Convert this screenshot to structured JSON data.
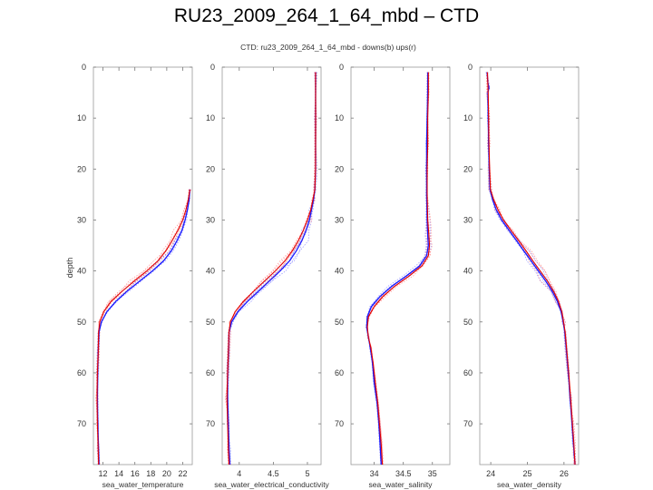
{
  "slide": {
    "title": "RU23_2009_264_1_64_mbd – CTD"
  },
  "chart_data": {
    "type": "line",
    "title": "CTD: ru23_2009_264_1_64_mbd - downs(b) ups(r)",
    "ylabel": "depth",
    "ylim": [
      0,
      78
    ],
    "y_inverted": true,
    "y_ticks": [
      0,
      10,
      20,
      30,
      40,
      50,
      60,
      70
    ],
    "series_legend": [
      {
        "name": "downs",
        "color": "#1a1aff"
      },
      {
        "name": "ups",
        "color": "#e00000"
      }
    ],
    "panels": [
      {
        "id": "temperature",
        "xlabel": "sea_water_temperature",
        "xlim": [
          10.8,
          23.2
        ],
        "x_ticks": [
          12,
          14,
          16,
          18,
          20,
          22
        ],
        "x_tick_labels": [
          "12",
          "14",
          "16",
          "18",
          "20",
          "22"
        ],
        "downs": [
          [
            22.9,
            24
          ],
          [
            22.8,
            26
          ],
          [
            22.6,
            28
          ],
          [
            22.3,
            30
          ],
          [
            21.9,
            32
          ],
          [
            21.3,
            34
          ],
          [
            20.6,
            36
          ],
          [
            19.6,
            38
          ],
          [
            18.2,
            40
          ],
          [
            16.6,
            42
          ],
          [
            15.0,
            44
          ],
          [
            13.6,
            46
          ],
          [
            12.5,
            48
          ],
          [
            11.8,
            50
          ],
          [
            11.5,
            52
          ],
          [
            11.4,
            56
          ],
          [
            11.35,
            60
          ],
          [
            11.3,
            65
          ],
          [
            11.35,
            70
          ],
          [
            11.45,
            75
          ],
          [
            11.5,
            78
          ]
        ],
        "ups": [
          [
            22.9,
            24
          ],
          [
            22.7,
            26
          ],
          [
            22.4,
            28
          ],
          [
            22.0,
            30
          ],
          [
            21.4,
            32
          ],
          [
            20.7,
            34
          ],
          [
            19.9,
            36
          ],
          [
            18.9,
            38
          ],
          [
            17.5,
            40
          ],
          [
            15.9,
            42
          ],
          [
            14.4,
            44
          ],
          [
            13.0,
            46
          ],
          [
            12.1,
            48
          ],
          [
            11.6,
            50
          ],
          [
            11.45,
            52
          ],
          [
            11.4,
            56
          ],
          [
            11.3,
            60
          ],
          [
            11.25,
            65
          ],
          [
            11.3,
            70
          ],
          [
            11.4,
            75
          ],
          [
            11.45,
            78
          ]
        ]
      },
      {
        "id": "conductivity",
        "xlabel": "sea_water_electrical_conductivity",
        "xlim": [
          3.75,
          5.2
        ],
        "x_ticks": [
          4,
          4.5,
          5
        ],
        "x_tick_labels": [
          "4",
          "4.5",
          "5"
        ],
        "downs": [
          [
            5.12,
            1
          ],
          [
            5.12,
            10
          ],
          [
            5.12,
            20
          ],
          [
            5.11,
            24
          ],
          [
            5.09,
            26
          ],
          [
            5.06,
            28
          ],
          [
            5.03,
            30
          ],
          [
            4.98,
            32
          ],
          [
            4.92,
            34
          ],
          [
            4.84,
            36
          ],
          [
            4.74,
            38
          ],
          [
            4.6,
            40
          ],
          [
            4.44,
            42
          ],
          [
            4.28,
            44
          ],
          [
            4.12,
            46
          ],
          [
            3.98,
            48
          ],
          [
            3.89,
            50
          ],
          [
            3.85,
            52
          ],
          [
            3.84,
            56
          ],
          [
            3.83,
            60
          ],
          [
            3.83,
            65
          ],
          [
            3.84,
            70
          ],
          [
            3.85,
            75
          ],
          [
            3.86,
            78
          ]
        ],
        "ups": [
          [
            5.12,
            1
          ],
          [
            5.12,
            10
          ],
          [
            5.12,
            20
          ],
          [
            5.11,
            24
          ],
          [
            5.08,
            26
          ],
          [
            5.05,
            28
          ],
          [
            5.0,
            30
          ],
          [
            4.94,
            32
          ],
          [
            4.87,
            34
          ],
          [
            4.78,
            36
          ],
          [
            4.67,
            38
          ],
          [
            4.53,
            40
          ],
          [
            4.37,
            42
          ],
          [
            4.21,
            44
          ],
          [
            4.06,
            46
          ],
          [
            3.94,
            48
          ],
          [
            3.87,
            50
          ],
          [
            3.85,
            52
          ],
          [
            3.84,
            56
          ],
          [
            3.83,
            60
          ],
          [
            3.82,
            65
          ],
          [
            3.83,
            70
          ],
          [
            3.84,
            75
          ],
          [
            3.85,
            78
          ]
        ]
      },
      {
        "id": "salinity",
        "xlabel": "sea_water_salinity",
        "xlim": [
          33.6,
          35.3
        ],
        "x_ticks": [
          34,
          34.5,
          35
        ],
        "x_tick_labels": [
          "34",
          "34.5",
          "35"
        ],
        "downs": [
          [
            34.92,
            1
          ],
          [
            34.92,
            5
          ],
          [
            34.91,
            10
          ],
          [
            34.9,
            15
          ],
          [
            34.9,
            20
          ],
          [
            34.9,
            25
          ],
          [
            34.91,
            30
          ],
          [
            34.92,
            33
          ],
          [
            34.93,
            35
          ],
          [
            34.9,
            37
          ],
          [
            34.78,
            39
          ],
          [
            34.55,
            41
          ],
          [
            34.3,
            43
          ],
          [
            34.1,
            45
          ],
          [
            33.95,
            47
          ],
          [
            33.88,
            49
          ],
          [
            33.87,
            51
          ],
          [
            33.9,
            53
          ],
          [
            33.93,
            55
          ],
          [
            33.97,
            58
          ],
          [
            34.0,
            62
          ],
          [
            34.05,
            66
          ],
          [
            34.08,
            70
          ],
          [
            34.1,
            74
          ],
          [
            34.12,
            78
          ]
        ],
        "ups": [
          [
            34.93,
            1
          ],
          [
            34.93,
            5
          ],
          [
            34.92,
            10
          ],
          [
            34.92,
            15
          ],
          [
            34.91,
            20
          ],
          [
            34.91,
            25
          ],
          [
            34.92,
            30
          ],
          [
            34.94,
            33
          ],
          [
            34.95,
            35
          ],
          [
            34.93,
            37
          ],
          [
            34.82,
            39
          ],
          [
            34.6,
            41
          ],
          [
            34.35,
            43
          ],
          [
            34.15,
            45
          ],
          [
            34.0,
            47
          ],
          [
            33.9,
            49
          ],
          [
            33.88,
            51
          ],
          [
            33.9,
            53
          ],
          [
            33.94,
            55
          ],
          [
            33.98,
            58
          ],
          [
            34.02,
            62
          ],
          [
            34.06,
            66
          ],
          [
            34.09,
            70
          ],
          [
            34.12,
            74
          ],
          [
            34.14,
            78
          ]
        ]
      },
      {
        "id": "density",
        "xlabel": "sea_water_density",
        "xlim": [
          23.7,
          26.4
        ],
        "x_ticks": [
          24,
          25,
          26
        ],
        "x_tick_labels": [
          "24",
          "25",
          "26"
        ],
        "downs": [
          [
            23.9,
            1
          ],
          [
            23.92,
            3
          ],
          [
            23.95,
            4
          ],
          [
            23.92,
            5
          ],
          [
            23.93,
            10
          ],
          [
            23.94,
            15
          ],
          [
            23.96,
            20
          ],
          [
            23.98,
            24
          ],
          [
            24.05,
            26
          ],
          [
            24.15,
            28
          ],
          [
            24.3,
            30
          ],
          [
            24.5,
            32
          ],
          [
            24.7,
            34
          ],
          [
            24.9,
            36
          ],
          [
            25.1,
            38
          ],
          [
            25.3,
            40
          ],
          [
            25.5,
            42
          ],
          [
            25.68,
            44
          ],
          [
            25.82,
            46
          ],
          [
            25.92,
            48
          ],
          [
            25.98,
            50
          ],
          [
            26.02,
            52
          ],
          [
            26.07,
            56
          ],
          [
            26.12,
            60
          ],
          [
            26.17,
            65
          ],
          [
            26.22,
            70
          ],
          [
            26.26,
            74
          ],
          [
            26.28,
            76
          ],
          [
            26.3,
            78
          ]
        ],
        "ups": [
          [
            23.91,
            1
          ],
          [
            23.93,
            5
          ],
          [
            23.94,
            10
          ],
          [
            23.95,
            15
          ],
          [
            23.97,
            20
          ],
          [
            23.99,
            24
          ],
          [
            24.08,
            26
          ],
          [
            24.2,
            28
          ],
          [
            24.35,
            30
          ],
          [
            24.55,
            32
          ],
          [
            24.76,
            34
          ],
          [
            24.96,
            36
          ],
          [
            25.15,
            38
          ],
          [
            25.35,
            40
          ],
          [
            25.55,
            42
          ],
          [
            25.72,
            44
          ],
          [
            25.85,
            46
          ],
          [
            25.94,
            48
          ],
          [
            25.99,
            50
          ],
          [
            26.03,
            52
          ],
          [
            26.08,
            56
          ],
          [
            26.13,
            60
          ],
          [
            26.18,
            65
          ],
          [
            26.23,
            70
          ],
          [
            26.27,
            74
          ],
          [
            26.3,
            78
          ]
        ]
      }
    ]
  }
}
